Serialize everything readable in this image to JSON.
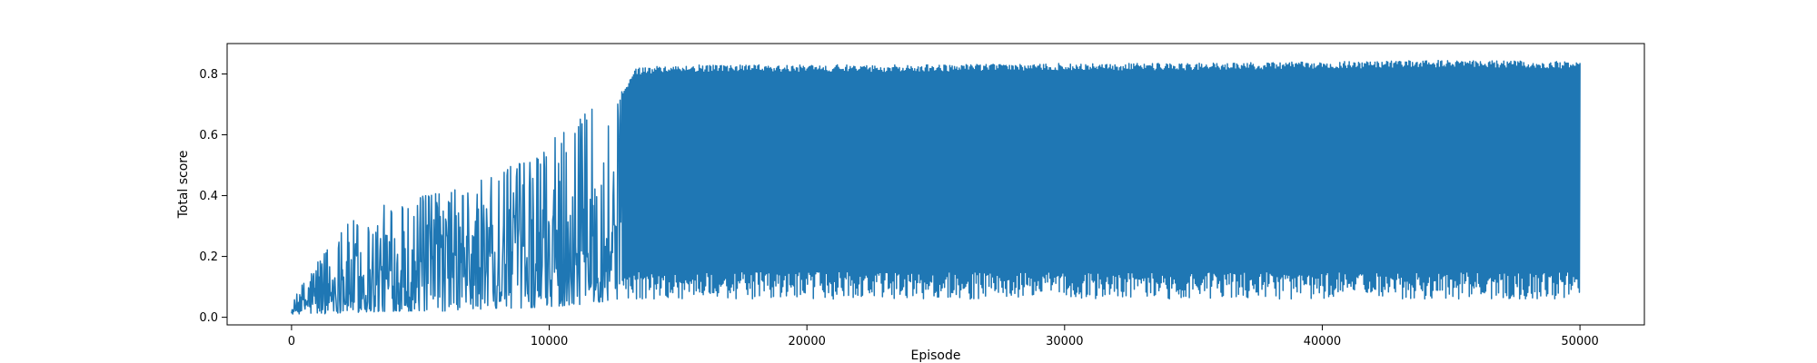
{
  "chart_data": {
    "type": "line",
    "title": "",
    "xlabel": "Episode",
    "ylabel": "Total score",
    "xlim": [
      -2500,
      52500
    ],
    "ylim": [
      -0.025,
      0.9
    ],
    "xticks": [
      0,
      10000,
      20000,
      30000,
      40000,
      50000
    ],
    "yticks": [
      0.0,
      0.2,
      0.4,
      0.6,
      0.8
    ],
    "grid": false,
    "legend": "none",
    "colors": {
      "line": "#1f77b4",
      "axes": "#000000",
      "background": "#ffffff"
    },
    "series": [
      {
        "episodes": 50000,
        "envelope": {
          "x": [
            0,
            1000,
            2000,
            3000,
            4000,
            5000,
            6000,
            7000,
            8000,
            9000,
            10000,
            11000,
            12000,
            12800,
            13300,
            15000,
            20000,
            25000,
            30000,
            35000,
            40000,
            45000,
            50000
          ],
          "upper": [
            0.04,
            0.22,
            0.3,
            0.36,
            0.38,
            0.4,
            0.42,
            0.45,
            0.48,
            0.52,
            0.58,
            0.64,
            0.72,
            0.74,
            0.82,
            0.83,
            0.83,
            0.83,
            0.835,
            0.835,
            0.84,
            0.845,
            0.84
          ],
          "lower": [
            0.01,
            0.01,
            0.015,
            0.015,
            0.02,
            0.02,
            0.02,
            0.025,
            0.03,
            0.03,
            0.035,
            0.04,
            0.05,
            0.06,
            0.06,
            0.06,
            0.06,
            0.06,
            0.06,
            0.06,
            0.06,
            0.06,
            0.06
          ]
        }
      }
    ]
  }
}
